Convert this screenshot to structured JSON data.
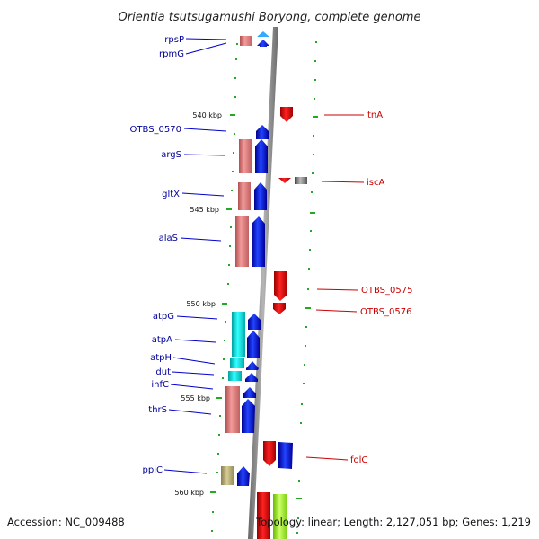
{
  "title": "Orientia tsutsugamushi Boryong, complete genome",
  "footer": {
    "accession": "Accession: NC_009488",
    "summary": "Topology: linear; Length: 2,127,051 bp; Genes: 1,219"
  },
  "scale_ticks": [
    "540 kbp",
    "545 kbp",
    "550 kbp",
    "555 kbp",
    "560 kbp"
  ],
  "left_genes": [
    "rpsP",
    "rpmG",
    "OTBS_0570",
    "argS",
    "gltX",
    "alaS",
    "atpG",
    "atpA",
    "atpH",
    "dut",
    "infC",
    "thrS",
    "ppiC"
  ],
  "right_genes": [
    "tnA",
    "iscA",
    "OTBS_0575",
    "OTBS_0576",
    "folC"
  ],
  "colors": {
    "forward_strand": "#0000dd",
    "reverse_strand": "#dd0000",
    "genome_line": "#8c8c8c",
    "tick": "#22aa22",
    "rna": "#e88080",
    "atp_synthase": "#00e5e5",
    "ppi": "#b8ac70",
    "unknown": "#777777",
    "lime": "#aaff44"
  }
}
